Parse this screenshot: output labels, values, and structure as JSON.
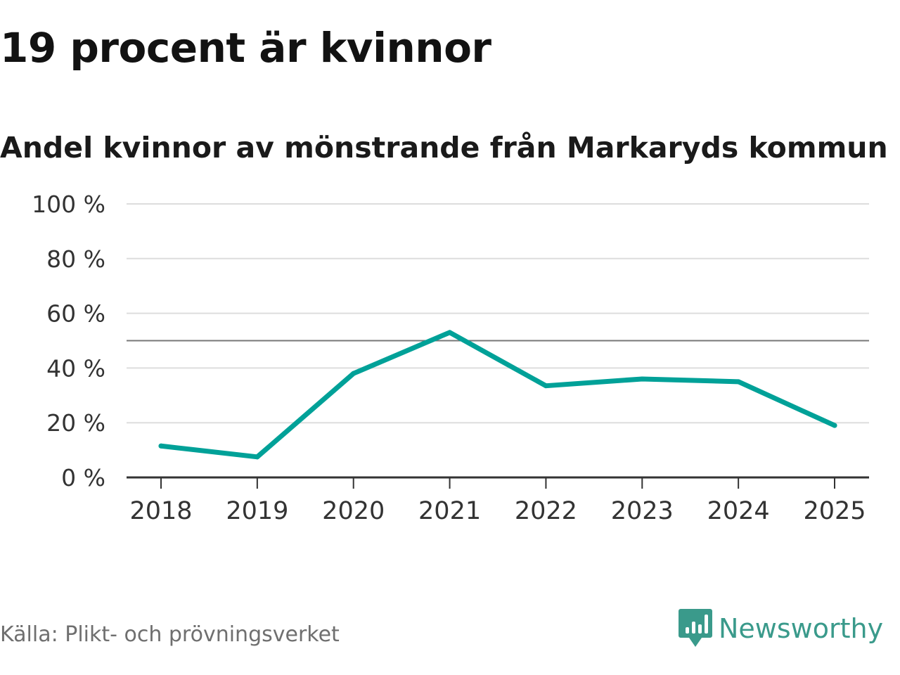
{
  "header": {
    "title": "19 procent är kvinnor",
    "subtitle": "Andel kvinnor av mönstrande från Markaryds kommun"
  },
  "footer": {
    "source": "Källa: Plikt- och prövningsverket",
    "brand_name": "Newsworthy",
    "brand_icon": "newsworthy-logo-icon"
  },
  "colors": {
    "line": "#00a198",
    "grid": "#dddddd",
    "reference": "#777777",
    "axis": "#333333",
    "brand": "#3a9a8b"
  },
  "chart_data": {
    "type": "line",
    "title": "19 procent är kvinnor",
    "subtitle": "Andel kvinnor av mönstrande från Markaryds kommun",
    "xlabel": "",
    "ylabel": "",
    "categories": [
      "2018",
      "2019",
      "2020",
      "2021",
      "2022",
      "2023",
      "2024",
      "2025"
    ],
    "series": [
      {
        "name": "Andel kvinnor",
        "values": [
          11.5,
          7.5,
          38,
          53,
          33.5,
          36,
          35,
          19
        ]
      }
    ],
    "reference_line": 50,
    "ylim": [
      0,
      100
    ],
    "yticks": [
      0,
      20,
      40,
      60,
      80,
      100
    ],
    "ytick_labels": [
      "0 %",
      "20 %",
      "40 %",
      "60 %",
      "80 %",
      "100 %"
    ],
    "grid": true,
    "legend": "none"
  }
}
